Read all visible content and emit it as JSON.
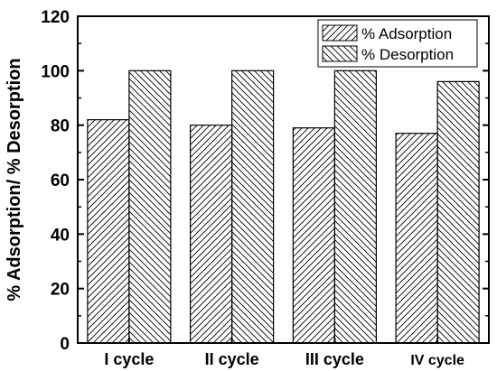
{
  "chart_data": {
    "type": "bar",
    "title": "",
    "xlabel": "",
    "ylabel": "% Adsorption/ % Desorption",
    "categories": [
      "I cycle",
      "II cycle",
      "III cycle",
      "IV cycle"
    ],
    "series": [
      {
        "name": "% Adsorption",
        "values": [
          82,
          80,
          79,
          77
        ],
        "pattern": "hatch-forward"
      },
      {
        "name": "% Desorption",
        "values": [
          100,
          100,
          100,
          96
        ],
        "pattern": "hatch-backward"
      }
    ],
    "ylim": [
      0,
      120
    ],
    "yticks": [
      0,
      20,
      40,
      60,
      80,
      100,
      120
    ],
    "grid": false,
    "legend_position": "top-right",
    "colors": {
      "bar_fill": "#ffffff",
      "hatch": "#000000",
      "axis": "#000000"
    }
  }
}
